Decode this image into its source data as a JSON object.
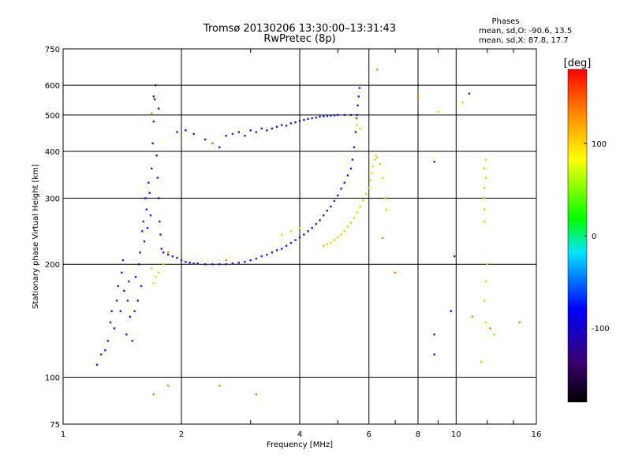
{
  "chart_data": {
    "type": "scatter",
    "title": "Tromsø 20130206 13:30:00–13:31:43",
    "subtitle": "RwPretec (8p)",
    "xlabel": "Frequency [MHz]",
    "ylabel": "Stationary phase Virtual Height [km]",
    "x_scale": "log",
    "y_scale": "log",
    "xlim": [
      1,
      16
    ],
    "ylim": [
      75,
      750
    ],
    "x_ticks": [
      1,
      2,
      4,
      6,
      8,
      10,
      16
    ],
    "x_tick_labels": [
      "1",
      "2",
      "4",
      "6",
      "8",
      "10",
      "16"
    ],
    "y_ticks": [
      75,
      100,
      200,
      300,
      400,
      500,
      600,
      750
    ],
    "y_tick_labels": [
      "75",
      "100",
      "200",
      "300",
      "400",
      "500",
      "600",
      "750"
    ],
    "grid": true,
    "phases_box": {
      "title": "Phases",
      "line_o": "mean, sd,O: -90.6, 13.5",
      "line_x": "mean, sd,X:  87.8, 17.7"
    },
    "colorbar": {
      "label": "[deg]",
      "range": [
        -180,
        180
      ],
      "ticks": [
        100,
        0,
        -100
      ],
      "tick_labels": [
        "100",
        "0",
        "-100"
      ],
      "stops": [
        "#000000",
        "#4b0082",
        "#0000ff",
        "#00ffff",
        "#00ff00",
        "#ffff00",
        "#ff8c00",
        "#ff0000"
      ]
    },
    "series": [
      {
        "colorkey": "o-mode",
        "color": "#1a1adf",
        "phase": -90.6,
        "points": [
          [
            1.22,
            108
          ],
          [
            1.25,
            115
          ],
          [
            1.28,
            118
          ],
          [
            1.3,
            125
          ],
          [
            1.32,
            140
          ],
          [
            1.33,
            150
          ],
          [
            1.35,
            135
          ],
          [
            1.37,
            160
          ],
          [
            1.38,
            175
          ],
          [
            1.4,
            150
          ],
          [
            1.41,
            190
          ],
          [
            1.42,
            205
          ],
          [
            1.43,
            170
          ],
          [
            1.45,
            130
          ],
          [
            1.46,
            160
          ],
          [
            1.47,
            180
          ],
          [
            1.48,
            145
          ],
          [
            1.5,
            125
          ],
          [
            1.52,
            150
          ],
          [
            1.53,
            185
          ],
          [
            1.55,
            160
          ],
          [
            1.56,
            200
          ],
          [
            1.57,
            215
          ],
          [
            1.58,
            175
          ],
          [
            1.59,
            245
          ],
          [
            1.6,
            260
          ],
          [
            1.61,
            230
          ],
          [
            1.62,
            300
          ],
          [
            1.63,
            280
          ],
          [
            1.64,
            250
          ],
          [
            1.65,
            330
          ],
          [
            1.66,
            310
          ],
          [
            1.67,
            270
          ],
          [
            1.68,
            360
          ],
          [
            1.69,
            420
          ],
          [
            1.7,
            480
          ],
          [
            1.71,
            550
          ],
          [
            1.72,
            600
          ],
          [
            1.73,
            390
          ],
          [
            1.74,
            340
          ],
          [
            1.75,
            300
          ],
          [
            1.76,
            260
          ],
          [
            1.77,
            240
          ],
          [
            1.78,
            220
          ],
          [
            1.8,
            215
          ],
          [
            1.85,
            212
          ],
          [
            1.9,
            210
          ],
          [
            1.95,
            208
          ],
          [
            2.0,
            205
          ],
          [
            2.05,
            203
          ],
          [
            2.1,
            202
          ],
          [
            2.15,
            201
          ],
          [
            2.2,
            201
          ],
          [
            2.3,
            200
          ],
          [
            2.4,
            200
          ],
          [
            2.5,
            200
          ],
          [
            2.6,
            200
          ],
          [
            2.7,
            201
          ],
          [
            2.8,
            202
          ],
          [
            2.9,
            203
          ],
          [
            3.0,
            205
          ],
          [
            3.1,
            207
          ],
          [
            3.2,
            210
          ],
          [
            3.3,
            212
          ],
          [
            3.4,
            215
          ],
          [
            3.5,
            218
          ],
          [
            3.6,
            220
          ],
          [
            3.7,
            224
          ],
          [
            3.8,
            228
          ],
          [
            3.9,
            232
          ],
          [
            4.0,
            236
          ],
          [
            4.1,
            240
          ],
          [
            4.2,
            245
          ],
          [
            4.3,
            250
          ],
          [
            4.4,
            256
          ],
          [
            4.5,
            262
          ],
          [
            4.6,
            270
          ],
          [
            4.7,
            278
          ],
          [
            4.8,
            285
          ],
          [
            4.9,
            295
          ],
          [
            5.0,
            305
          ],
          [
            5.1,
            318
          ],
          [
            5.2,
            330
          ],
          [
            5.3,
            345
          ],
          [
            5.4,
            360
          ],
          [
            5.45,
            380
          ],
          [
            5.5,
            410
          ],
          [
            5.55,
            450
          ],
          [
            5.58,
            490
          ],
          [
            5.62,
            530
          ],
          [
            5.65,
            560
          ],
          [
            5.68,
            590
          ],
          [
            1.95,
            450
          ],
          [
            2.05,
            455
          ],
          [
            2.15,
            445
          ],
          [
            2.3,
            430
          ],
          [
            2.4,
            420
          ],
          [
            2.5,
            410
          ],
          [
            2.6,
            440
          ],
          [
            2.7,
            445
          ],
          [
            2.8,
            450
          ],
          [
            2.9,
            440
          ],
          [
            3.0,
            455
          ],
          [
            3.1,
            450
          ],
          [
            3.2,
            460
          ],
          [
            3.3,
            455
          ],
          [
            3.4,
            460
          ],
          [
            3.5,
            465
          ],
          [
            3.6,
            470
          ],
          [
            3.7,
            468
          ],
          [
            3.8,
            475
          ],
          [
            3.9,
            478
          ],
          [
            4.0,
            482
          ],
          [
            4.1,
            485
          ],
          [
            4.2,
            488
          ],
          [
            4.3,
            490
          ],
          [
            4.4,
            492
          ],
          [
            4.5,
            495
          ],
          [
            4.6,
            496
          ],
          [
            4.7,
            497
          ],
          [
            4.8,
            498
          ],
          [
            4.9,
            499
          ],
          [
            5.0,
            500
          ],
          [
            5.2,
            500
          ],
          [
            5.4,
            500
          ],
          [
            5.6,
            500
          ],
          [
            8.8,
            375
          ],
          [
            9.9,
            210
          ],
          [
            9.7,
            150
          ],
          [
            8.8,
            130
          ],
          [
            8.8,
            115
          ],
          [
            10.8,
            570
          ],
          [
            1.7,
            560
          ],
          [
            1.75,
            520
          ]
        ]
      },
      {
        "colorkey": "x-mode",
        "color": "#d6d600",
        "phase": 87.8,
        "points": [
          [
            4.6,
            224
          ],
          [
            4.7,
            226
          ],
          [
            4.8,
            228
          ],
          [
            4.9,
            232
          ],
          [
            5.0,
            236
          ],
          [
            5.1,
            240
          ],
          [
            5.2,
            245
          ],
          [
            5.3,
            252
          ],
          [
            5.4,
            258
          ],
          [
            5.5,
            266
          ],
          [
            5.6,
            275
          ],
          [
            5.7,
            285
          ],
          [
            5.8,
            296
          ],
          [
            5.9,
            308
          ],
          [
            6.0,
            320
          ],
          [
            6.05,
            335
          ],
          [
            6.1,
            350
          ],
          [
            6.15,
            365
          ],
          [
            6.2,
            380
          ],
          [
            6.25,
            390
          ],
          [
            6.3,
            385
          ],
          [
            6.4,
            370
          ],
          [
            6.5,
            340
          ],
          [
            6.6,
            300
          ],
          [
            6.65,
            280
          ],
          [
            5.55,
            490
          ],
          [
            5.6,
            470
          ],
          [
            5.7,
            460
          ],
          [
            1.8,
            200
          ],
          [
            1.75,
            190
          ],
          [
            1.72,
            185
          ],
          [
            1.7,
            178
          ],
          [
            1.68,
            195
          ],
          [
            11.8,
            260
          ],
          [
            11.8,
            280
          ],
          [
            11.8,
            300
          ],
          [
            11.8,
            320
          ],
          [
            11.9,
            340
          ],
          [
            11.8,
            360
          ],
          [
            11.9,
            380
          ],
          [
            12.0,
            200
          ],
          [
            11.9,
            180
          ],
          [
            11.8,
            160
          ],
          [
            11.9,
            140
          ],
          [
            12.2,
            135
          ],
          [
            12.5,
            130
          ],
          [
            4.0,
            250
          ],
          [
            3.8,
            245
          ],
          [
            3.6,
            240
          ],
          [
            9.0,
            510
          ],
          [
            10.4,
            540
          ],
          [
            11.6,
            110
          ]
        ]
      },
      {
        "colorkey": "outliers",
        "color": "#ff8000",
        "phase": 160,
        "points": [
          [
            1.7,
            90
          ],
          [
            1.85,
            95
          ],
          [
            2.5,
            95
          ],
          [
            3.1,
            90
          ],
          [
            1.68,
            505
          ],
          [
            1.85,
            215
          ],
          [
            2.6,
            205
          ],
          [
            2.4,
            420
          ],
          [
            6.5,
            235
          ],
          [
            7.0,
            190
          ],
          [
            8.0,
            560
          ],
          [
            11.0,
            145
          ],
          [
            14.5,
            140
          ],
          [
            12.2,
            135
          ],
          [
            6.3,
            660
          ]
        ]
      }
    ]
  }
}
